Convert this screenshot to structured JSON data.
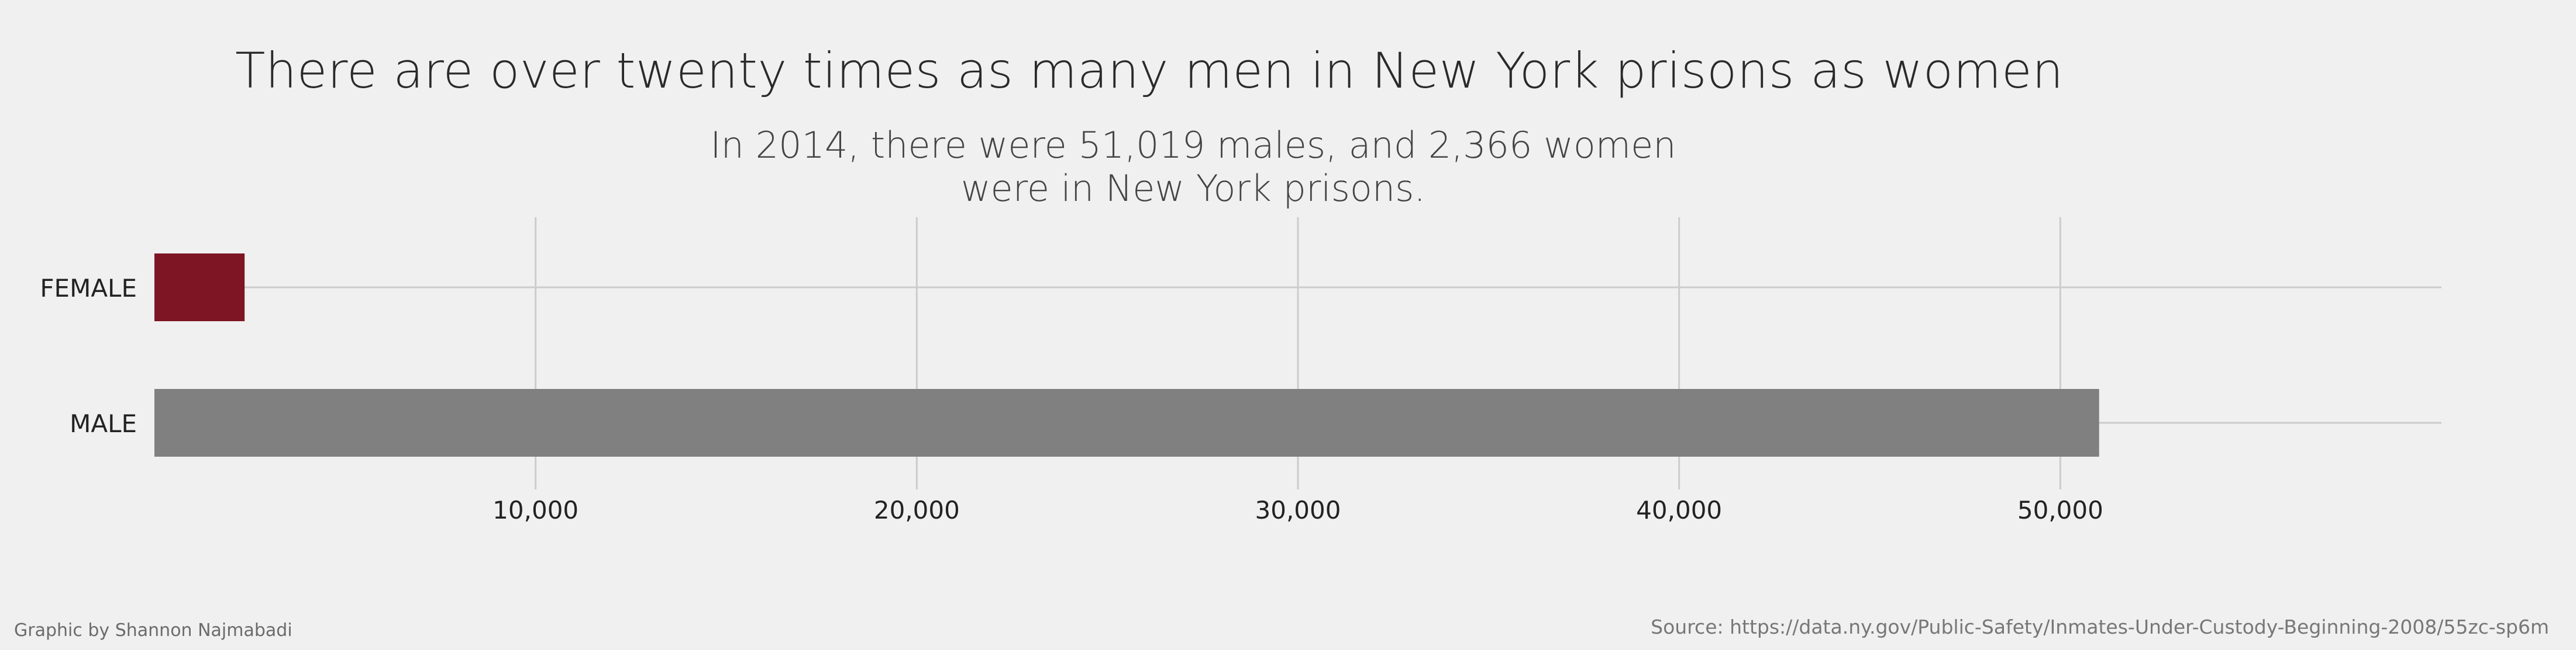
{
  "chart_data": {
    "type": "bar",
    "orientation": "horizontal",
    "title": "There are over twenty times as many men in New York prisons as women",
    "subtitle": "In 2014, there were 51,019 males, and 2,366 women were in New York prisons.",
    "categories": [
      "FEMALE",
      "MALE"
    ],
    "values": [
      2366,
      51019
    ],
    "colors": [
      "#7d1525",
      "#808080"
    ],
    "xlim": [
      0,
      60000
    ],
    "xticks": [
      10000,
      20000,
      30000,
      40000,
      50000
    ],
    "xtick_labels": [
      "10,000",
      "20,000",
      "30,000",
      "40,000",
      "50,000"
    ],
    "grid": true
  },
  "footer": {
    "credit": "Graphic by Shannon Najmabadi",
    "source": "Source: https://data.ny.gov/Public-Safety/Inmates-Under-Custody-Beginning-2008/55zc-sp6m"
  }
}
